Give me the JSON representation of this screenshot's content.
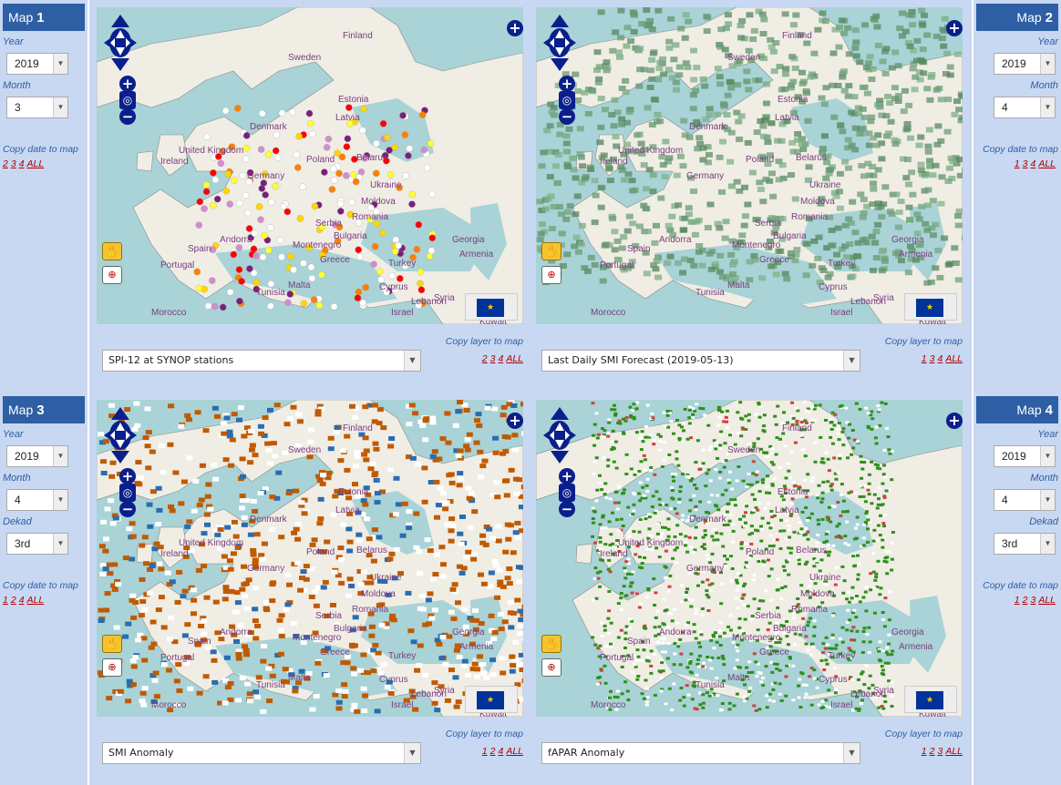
{
  "maps": [
    {
      "title": "Map",
      "number": "1",
      "year_label": "Year",
      "year": "2019",
      "month_label": "Month",
      "month": "3",
      "copy_date_label": "Copy date to map",
      "copy_date_links": [
        "2",
        "3",
        "4",
        "ALL"
      ],
      "layer": "SPI-12 at SYNOP stations",
      "copy_layer_label": "Copy layer to map",
      "copy_layer_links": [
        "2",
        "3",
        "4",
        "ALL"
      ],
      "style": "stations"
    },
    {
      "title": "Map",
      "number": "2",
      "year_label": "Year",
      "year": "2019",
      "month_label": "Month",
      "month": "4",
      "copy_date_label": "Copy date to map",
      "copy_date_links": [
        "1",
        "3",
        "4",
        "ALL"
      ],
      "layer": "Last Daily SMI Forecast (2019-05-13)",
      "copy_layer_label": "Copy layer to map",
      "copy_layer_links": [
        "1",
        "3",
        "4",
        "ALL"
      ],
      "style": "forecast"
    },
    {
      "title": "Map",
      "number": "3",
      "year_label": "Year",
      "year": "2019",
      "month_label": "Month",
      "month": "4",
      "dekad_label": "Dekad",
      "dekad": "3rd",
      "copy_date_label": "Copy date to map",
      "copy_date_links": [
        "1",
        "2",
        "4",
        "ALL"
      ],
      "layer": "SMI Anomaly",
      "copy_layer_label": "Copy layer to map",
      "copy_layer_links": [
        "1",
        "2",
        "4",
        "ALL"
      ],
      "style": "smi"
    },
    {
      "title": "Map",
      "number": "4",
      "year_label": "Year",
      "year": "2019",
      "month_label": "Month",
      "month": "4",
      "dekad_label": "Dekad",
      "dekad": "3rd",
      "copy_date_label": "Copy date to map",
      "copy_date_links": [
        "1",
        "2",
        "3",
        "ALL"
      ],
      "layer": "fAPAR Anomaly",
      "copy_layer_label": "Copy layer to map",
      "copy_layer_links": [
        "1",
        "2",
        "3",
        "ALL"
      ],
      "style": "fapar"
    }
  ],
  "place_names": [
    "Finland",
    "Sweden",
    "Estonia",
    "Latvia",
    "Denmark",
    "United Kingdom",
    "Ireland",
    "Poland",
    "Germany",
    "Belarus",
    "Ukraine",
    "Moldova",
    "Romania",
    "Serbia",
    "Bulgaria",
    "Montenegro",
    "Spain",
    "Portugal",
    "Andorra",
    "Greece",
    "Turkey",
    "Georgia",
    "Armenia",
    "Cyprus",
    "Syria",
    "Lebanon",
    "Israel",
    "Tunisia",
    "Malta",
    "Morocco",
    "Kuwait"
  ],
  "colors": {
    "panel_bg": "#c8d8f2",
    "header_bg": "#2e5ea3",
    "link": "#b00000",
    "sea": "#a9d3d6",
    "land": "#f0ede5",
    "control": "#0b1f8c"
  }
}
